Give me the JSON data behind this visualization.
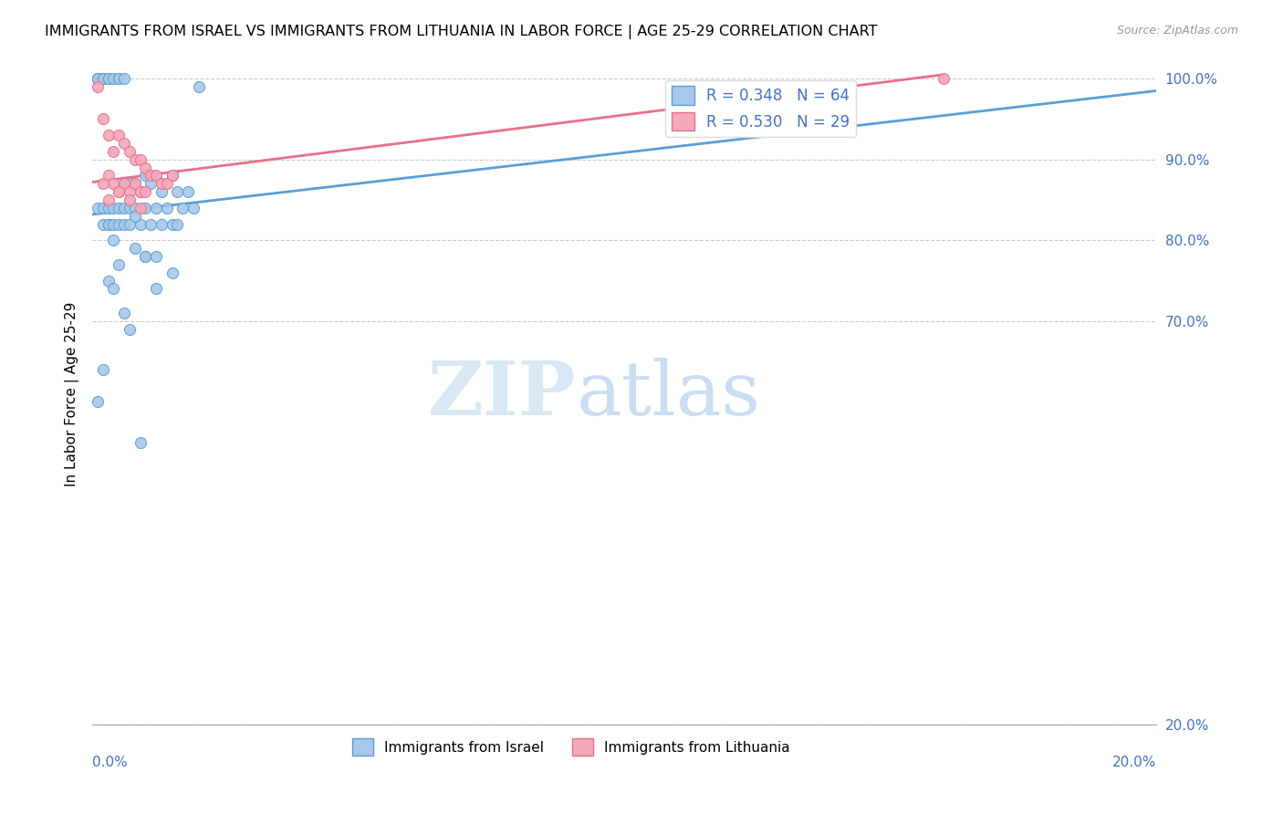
{
  "title": "IMMIGRANTS FROM ISRAEL VS IMMIGRANTS FROM LITHUANIA IN LABOR FORCE | AGE 25-29 CORRELATION CHART",
  "source": "Source: ZipAtlas.com",
  "ylabel": "In Labor Force | Age 25-29",
  "legend_blue_r": "R = 0.348",
  "legend_blue_n": "N = 64",
  "legend_pink_r": "R = 0.530",
  "legend_pink_n": "N = 29",
  "legend_label_blue": "Immigrants from Israel",
  "legend_label_pink": "Immigrants from Lithuania",
  "watermark_zip": "ZIP",
  "watermark_atlas": "atlas",
  "color_blue": "#a8c8e8",
  "color_pink": "#f4a8b8",
  "color_blue_line": "#5a9fd4",
  "color_pink_line": "#e8708a",
  "color_blue_text": "#4472c4",
  "right_yticks": [
    0.2,
    0.7,
    0.8,
    0.9,
    1.0
  ],
  "right_ytick_labels": [
    "20.0%",
    "70.0%",
    "80.0%",
    "90.0%",
    "100.0%"
  ],
  "blue_dots_x": [
    0.001,
    0.001,
    0.001,
    0.001,
    0.002,
    0.002,
    0.002,
    0.002,
    0.002,
    0.003,
    0.003,
    0.003,
    0.003,
    0.003,
    0.004,
    0.004,
    0.004,
    0.004,
    0.005,
    0.005,
    0.005,
    0.005,
    0.006,
    0.006,
    0.006,
    0.006,
    0.007,
    0.007,
    0.007,
    0.008,
    0.008,
    0.008,
    0.009,
    0.009,
    0.01,
    0.01,
    0.01,
    0.011,
    0.011,
    0.012,
    0.012,
    0.013,
    0.013,
    0.014,
    0.015,
    0.015,
    0.016,
    0.016,
    0.017,
    0.018,
    0.019,
    0.02,
    0.003,
    0.004,
    0.005,
    0.006,
    0.008,
    0.01,
    0.012,
    0.015,
    0.001,
    0.002,
    0.007,
    0.009
  ],
  "blue_dots_y": [
    1.0,
    1.0,
    1.0,
    0.84,
    1.0,
    1.0,
    1.0,
    0.84,
    0.82,
    1.0,
    1.0,
    0.84,
    0.82,
    0.82,
    1.0,
    0.84,
    0.82,
    0.8,
    1.0,
    1.0,
    0.84,
    0.82,
    1.0,
    0.87,
    0.84,
    0.82,
    0.87,
    0.84,
    0.82,
    0.87,
    0.84,
    0.79,
    0.86,
    0.82,
    0.88,
    0.84,
    0.78,
    0.87,
    0.82,
    0.84,
    0.78,
    0.86,
    0.82,
    0.84,
    0.88,
    0.82,
    0.86,
    0.82,
    0.84,
    0.86,
    0.84,
    0.99,
    0.75,
    0.74,
    0.77,
    0.71,
    0.83,
    0.78,
    0.74,
    0.76,
    0.6,
    0.64,
    0.69,
    0.55
  ],
  "pink_dots_x": [
    0.001,
    0.002,
    0.003,
    0.003,
    0.004,
    0.004,
    0.005,
    0.005,
    0.006,
    0.006,
    0.007,
    0.007,
    0.008,
    0.008,
    0.009,
    0.009,
    0.01,
    0.01,
    0.011,
    0.012,
    0.013,
    0.014,
    0.015,
    0.002,
    0.003,
    0.005,
    0.007,
    0.009,
    0.16
  ],
  "pink_dots_y": [
    0.99,
    0.95,
    0.93,
    0.88,
    0.91,
    0.87,
    0.93,
    0.86,
    0.92,
    0.87,
    0.91,
    0.86,
    0.9,
    0.87,
    0.9,
    0.86,
    0.89,
    0.86,
    0.88,
    0.88,
    0.87,
    0.87,
    0.88,
    0.87,
    0.85,
    0.86,
    0.85,
    0.84,
    1.0
  ],
  "blue_line_x": [
    0.0,
    0.2
  ],
  "blue_line_y": [
    0.832,
    0.985
  ],
  "pink_line_x": [
    0.0,
    0.16
  ],
  "pink_line_y": [
    0.872,
    1.005
  ],
  "xlim": [
    0.0,
    0.2
  ],
  "ylim": [
    0.2,
    1.02
  ]
}
